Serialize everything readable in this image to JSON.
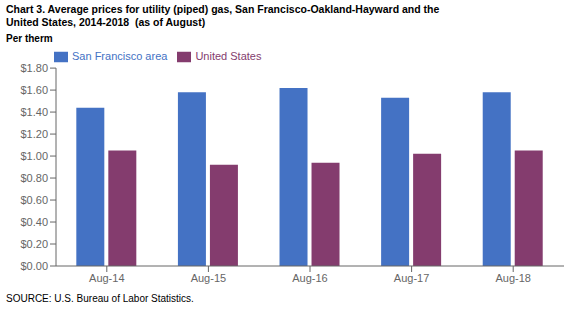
{
  "chart_data": {
    "type": "bar",
    "title": "Chart 3. Average prices for utility (piped) gas, San Francisco-Oakland-Hayward and the\nUnited States, 2014-2018  (as of August)",
    "y_label": "Per therm",
    "source": "SOURCE: U.S. Bureau of Labor Statistics.",
    "categories": [
      "Aug-14",
      "Aug-15",
      "Aug-16",
      "Aug-17",
      "Aug-18"
    ],
    "series": [
      {
        "name": "San Francisco area",
        "color": "#4472C4",
        "values": [
          1.44,
          1.58,
          1.62,
          1.53,
          1.58
        ]
      },
      {
        "name": "United States",
        "color": "#843C6E",
        "values": [
          1.05,
          0.92,
          0.94,
          1.02,
          1.05
        ]
      }
    ],
    "ylim": [
      0.0,
      1.8
    ],
    "yticks": [
      {
        "value": 0.0,
        "label": "$0.00"
      },
      {
        "value": 0.2,
        "label": "$0.20"
      },
      {
        "value": 0.4,
        "label": "$0.40"
      },
      {
        "value": 0.6,
        "label": "$0.60"
      },
      {
        "value": 0.8,
        "label": "$0.80"
      },
      {
        "value": 1.0,
        "label": "$1.00"
      },
      {
        "value": 1.2,
        "label": "$1.20"
      },
      {
        "value": 1.4,
        "label": "$1.40"
      },
      {
        "value": 1.6,
        "label": "$1.60"
      },
      {
        "value": 1.8,
        "label": "$1.80"
      }
    ],
    "grid": false,
    "legend": "upper left"
  }
}
